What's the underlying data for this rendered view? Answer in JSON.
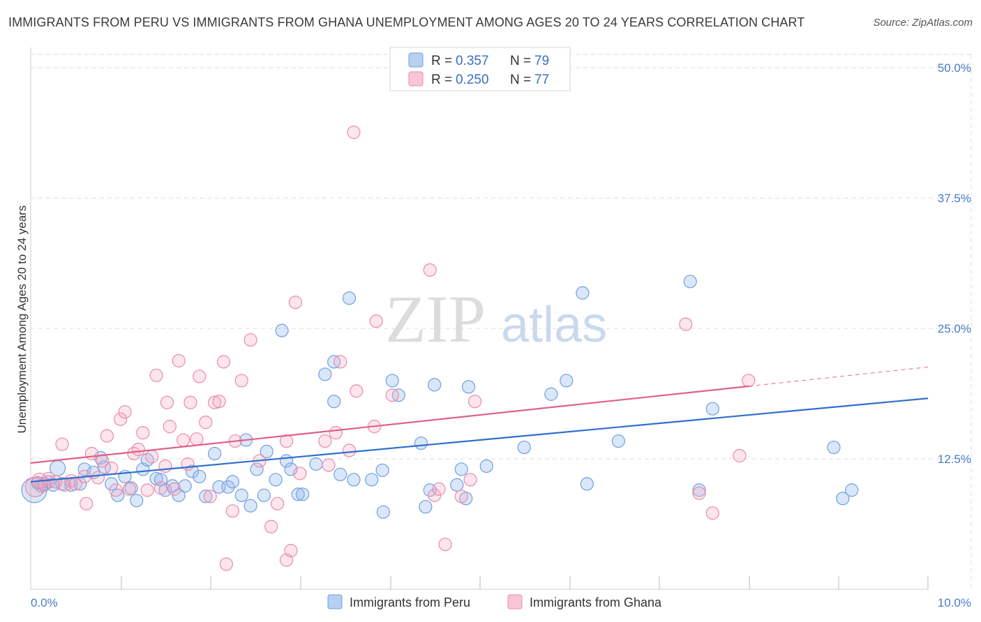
{
  "title": "IMMIGRANTS FROM PERU VS IMMIGRANTS FROM GHANA UNEMPLOYMENT AMONG AGES 20 TO 24 YEARS CORRELATION CHART",
  "source": "Source: ZipAtlas.com",
  "watermark": {
    "zip": "ZIP",
    "atlas": "atlas"
  },
  "colors": {
    "peru": "#6f9fe0",
    "ghana": "#e98aaa",
    "peru_line": "#2f6fcf",
    "ghana_line": "#e0608a",
    "grid": "#dddddd",
    "tick_label": "#4a7ac7"
  },
  "legend": {
    "peru": {
      "r_label": "R =",
      "r_value": "0.357",
      "n_label": "N =",
      "n_value": "79"
    },
    "ghana": {
      "r_label": "R =",
      "r_value": "0.250",
      "n_label": "N =",
      "n_value": "77"
    }
  },
  "chart_data": {
    "type": "scatter",
    "title": "IMMIGRANTS FROM PERU VS IMMIGRANTS FROM GHANA UNEMPLOYMENT AMONG AGES 20 TO 24 YEARS CORRELATION CHART",
    "xlabel": "",
    "ylabel": "Unemployment Among Ages 20 to 24 years",
    "xlim": [
      0,
      10
    ],
    "ylim": [
      0,
      50
    ],
    "x_tick_labels": [
      {
        "value": 0,
        "label": "0.0%"
      },
      {
        "value": 10,
        "label": "10.0%"
      }
    ],
    "y_tick_labels": [
      {
        "value": 12.5,
        "label": "12.5%"
      },
      {
        "value": 25,
        "label": "25.0%"
      },
      {
        "value": 37.5,
        "label": "37.5%"
      },
      {
        "value": 50,
        "label": "50.0%"
      }
    ],
    "x_minor_ticks": [
      1,
      2,
      3,
      4,
      5,
      6,
      7,
      8,
      9,
      10
    ],
    "legend_position": "top-center",
    "series": [
      {
        "name": "Immigrants from Peru",
        "r": 0.357,
        "n": 79,
        "trend": {
          "x0": 0,
          "y0": 10.3,
          "x1": 10,
          "y1": 18.3,
          "solid_until": 10
        },
        "points": [
          [
            0.04,
            9.5,
            18
          ],
          [
            0.08,
            10.2,
            9
          ],
          [
            0.12,
            9.9,
            9
          ],
          [
            0.16,
            10.1,
            9
          ],
          [
            0.2,
            10.3,
            9
          ],
          [
            0.25,
            10.0,
            9
          ],
          [
            0.3,
            11.6,
            11
          ],
          [
            0.35,
            10.1,
            9
          ],
          [
            0.45,
            10.0,
            9
          ],
          [
            0.55,
            10.1,
            9
          ],
          [
            0.6,
            11.5,
            9
          ],
          [
            0.7,
            11.2,
            9
          ],
          [
            0.78,
            12.6,
            9
          ],
          [
            0.82,
            11.7,
            9
          ],
          [
            0.9,
            10.1,
            9
          ],
          [
            0.97,
            9.0,
            9
          ],
          [
            1.05,
            10.8,
            9
          ],
          [
            1.12,
            9.7,
            9
          ],
          [
            1.18,
            8.5,
            9
          ],
          [
            1.25,
            11.5,
            9
          ],
          [
            1.3,
            12.4,
            9
          ],
          [
            1.4,
            10.6,
            9
          ],
          [
            1.45,
            10.5,
            9
          ],
          [
            1.5,
            9.5,
            9
          ],
          [
            1.58,
            9.9,
            9
          ],
          [
            1.65,
            9.0,
            9
          ],
          [
            1.72,
            9.9,
            9
          ],
          [
            1.8,
            11.3,
            9
          ],
          [
            1.88,
            10.8,
            9
          ],
          [
            1.95,
            8.9,
            9
          ],
          [
            2.05,
            13.0,
            9
          ],
          [
            2.1,
            9.8,
            9
          ],
          [
            2.2,
            9.8,
            9
          ],
          [
            2.25,
            10.3,
            9
          ],
          [
            2.35,
            9.0,
            9
          ],
          [
            2.4,
            14.3,
            9
          ],
          [
            2.45,
            8.0,
            9
          ],
          [
            2.52,
            11.5,
            9
          ],
          [
            2.6,
            9.0,
            9
          ],
          [
            2.63,
            13.2,
            9
          ],
          [
            2.73,
            10.5,
            9
          ],
          [
            2.8,
            24.8,
            9
          ],
          [
            2.85,
            12.3,
            9
          ],
          [
            2.9,
            11.5,
            9
          ],
          [
            2.98,
            9.1,
            9
          ],
          [
            3.03,
            9.1,
            9
          ],
          [
            3.18,
            12.0,
            9
          ],
          [
            3.28,
            20.6,
            9
          ],
          [
            3.38,
            21.8,
            9
          ],
          [
            3.38,
            18.0,
            9
          ],
          [
            3.45,
            11.0,
            9
          ],
          [
            3.55,
            27.9,
            9
          ],
          [
            3.6,
            10.5,
            9
          ],
          [
            3.8,
            10.5,
            9
          ],
          [
            3.92,
            11.4,
            9
          ],
          [
            3.93,
            7.4,
            9
          ],
          [
            4.03,
            20.0,
            9
          ],
          [
            4.1,
            18.6,
            9
          ],
          [
            4.35,
            14.0,
            9
          ],
          [
            4.4,
            7.9,
            9
          ],
          [
            4.45,
            9.5,
            9
          ],
          [
            4.5,
            19.6,
            9
          ],
          [
            4.75,
            10.0,
            9
          ],
          [
            4.8,
            11.5,
            9
          ],
          [
            4.85,
            8.7,
            9
          ],
          [
            4.88,
            19.4,
            9
          ],
          [
            5.08,
            11.8,
            9
          ],
          [
            5.5,
            13.6,
            9
          ],
          [
            5.8,
            18.7,
            9
          ],
          [
            5.97,
            20.0,
            9
          ],
          [
            6.15,
            28.4,
            9
          ],
          [
            6.2,
            10.1,
            9
          ],
          [
            6.55,
            14.2,
            9
          ],
          [
            7.35,
            29.5,
            9
          ],
          [
            7.45,
            9.5,
            9
          ],
          [
            7.6,
            17.3,
            9
          ],
          [
            8.95,
            13.6,
            9
          ],
          [
            9.05,
            8.7,
            9
          ],
          [
            9.15,
            9.5,
            9
          ]
        ]
      },
      {
        "name": "Immigrants from Ghana",
        "r": 0.25,
        "n": 77,
        "trend": {
          "x0": 0,
          "y0": 12.1,
          "x1": 10,
          "y1": 21.3,
          "solid_until": 8.0
        },
        "points": [
          [
            0.05,
            9.8,
            14
          ],
          [
            0.1,
            10.4,
            11
          ],
          [
            0.15,
            10.0,
            9
          ],
          [
            0.2,
            10.6,
            9
          ],
          [
            0.28,
            10.3,
            9
          ],
          [
            0.35,
            13.9,
            9
          ],
          [
            0.38,
            10.0,
            9
          ],
          [
            0.45,
            10.4,
            9
          ],
          [
            0.5,
            10.1,
            9
          ],
          [
            0.6,
            10.8,
            9
          ],
          [
            0.62,
            8.2,
            9
          ],
          [
            0.68,
            13.0,
            9
          ],
          [
            0.75,
            10.7,
            9
          ],
          [
            0.8,
            12.3,
            9
          ],
          [
            0.85,
            14.7,
            9
          ],
          [
            0.9,
            11.6,
            9
          ],
          [
            0.95,
            9.5,
            9
          ],
          [
            1.0,
            16.3,
            9
          ],
          [
            1.05,
            17.0,
            9
          ],
          [
            1.1,
            9.6,
            9
          ],
          [
            1.15,
            13.0,
            9
          ],
          [
            1.2,
            13.4,
            9
          ],
          [
            1.25,
            15.0,
            9
          ],
          [
            1.3,
            9.5,
            9
          ],
          [
            1.35,
            12.7,
            9
          ],
          [
            1.4,
            20.5,
            9
          ],
          [
            1.45,
            9.7,
            9
          ],
          [
            1.5,
            11.8,
            9
          ],
          [
            1.52,
            17.9,
            9
          ],
          [
            1.55,
            15.6,
            9
          ],
          [
            1.6,
            9.6,
            9
          ],
          [
            1.65,
            21.9,
            9
          ],
          [
            1.7,
            14.3,
            9
          ],
          [
            1.75,
            12.0,
            9
          ],
          [
            1.78,
            17.9,
            9
          ],
          [
            1.85,
            14.4,
            9
          ],
          [
            1.88,
            20.4,
            9
          ],
          [
            1.95,
            16.0,
            9
          ],
          [
            2.0,
            8.9,
            9
          ],
          [
            2.05,
            17.9,
            9
          ],
          [
            2.1,
            18.0,
            9
          ],
          [
            2.15,
            21.8,
            9
          ],
          [
            2.18,
            2.4,
            9
          ],
          [
            2.25,
            7.5,
            9
          ],
          [
            2.28,
            14.2,
            9
          ],
          [
            2.35,
            20.0,
            9
          ],
          [
            2.45,
            23.9,
            9
          ],
          [
            2.55,
            12.3,
            9
          ],
          [
            2.68,
            6.0,
            9
          ],
          [
            2.75,
            8.2,
            9
          ],
          [
            2.85,
            14.2,
            9
          ],
          [
            2.85,
            2.8,
            9
          ],
          [
            2.9,
            3.7,
            9
          ],
          [
            2.95,
            27.5,
            9
          ],
          [
            3.0,
            11.1,
            9
          ],
          [
            3.28,
            14.2,
            9
          ],
          [
            3.32,
            11.9,
            9
          ],
          [
            3.4,
            15.0,
            9
          ],
          [
            3.45,
            21.8,
            9
          ],
          [
            3.55,
            13.3,
            9
          ],
          [
            3.6,
            43.8,
            9
          ],
          [
            3.63,
            19.0,
            9
          ],
          [
            3.83,
            15.6,
            9
          ],
          [
            3.85,
            25.7,
            9
          ],
          [
            4.03,
            18.6,
            9
          ],
          [
            4.45,
            30.6,
            9
          ],
          [
            4.5,
            9.0,
            9
          ],
          [
            4.55,
            9.6,
            9
          ],
          [
            4.62,
            4.3,
            9
          ],
          [
            4.8,
            8.9,
            9
          ],
          [
            4.9,
            10.5,
            9
          ],
          [
            4.95,
            18.0,
            9
          ],
          [
            7.3,
            25.4,
            9
          ],
          [
            7.45,
            9.2,
            9
          ],
          [
            7.6,
            7.3,
            9
          ],
          [
            7.9,
            12.8,
            9
          ],
          [
            8.0,
            20.0,
            9
          ]
        ]
      }
    ]
  },
  "bottom_legend": {
    "peru": "Immigrants from Peru",
    "ghana": "Immigrants from Ghana"
  }
}
